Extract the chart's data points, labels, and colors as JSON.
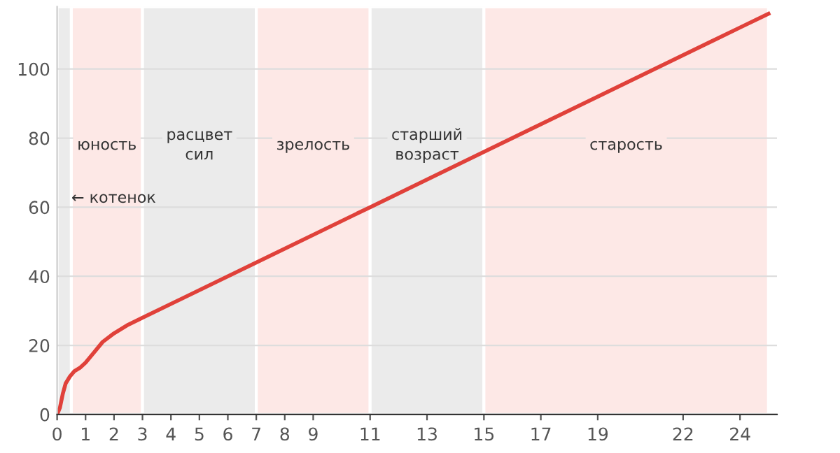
{
  "chart_data": {
    "type": "line",
    "x": [
      0,
      0.1,
      0.2,
      0.3,
      0.45,
      0.6,
      0.8,
      1,
      1.3,
      1.6,
      2,
      2.5,
      3,
      7,
      11,
      15,
      19,
      24,
      25
    ],
    "series": [
      {
        "color": "#e0413a",
        "values": [
          0,
          2,
          6,
          9,
          11,
          12.5,
          13.5,
          15,
          18,
          21,
          23.5,
          26,
          28,
          44,
          60,
          76,
          92,
          112,
          116
        ]
      }
    ],
    "xlim": [
      0,
      25.3
    ],
    "ylim": [
      0,
      118
    ],
    "xticks": [
      0,
      1,
      2,
      3,
      4,
      5,
      6,
      7,
      8,
      9,
      11,
      13,
      15,
      17,
      19,
      22,
      24
    ],
    "yticks": [
      0,
      20,
      40,
      60,
      80,
      100
    ],
    "grid": "y",
    "marker": "none",
    "line_style": "solid",
    "bands": [
      {
        "axis": "x",
        "from": 0,
        "to": 0.5,
        "label": "← котенок",
        "color": "#ebebeb"
      },
      {
        "axis": "x",
        "from": 0.5,
        "to": 3,
        "label": "юность",
        "color": "#fde8e6"
      },
      {
        "axis": "x",
        "from": 3,
        "to": 7,
        "label": "расцвет\nсил",
        "color": "#ebebeb"
      },
      {
        "axis": "x",
        "from": 7,
        "to": 11,
        "label": "зрелость",
        "color": "#fde8e6"
      },
      {
        "axis": "x",
        "from": 11,
        "to": 15,
        "label": "старший\nвозраст",
        "color": "#ebebeb"
      },
      {
        "axis": "x",
        "from": 15,
        "to": 25,
        "label": "старость",
        "color": "#fde8e6"
      }
    ]
  }
}
